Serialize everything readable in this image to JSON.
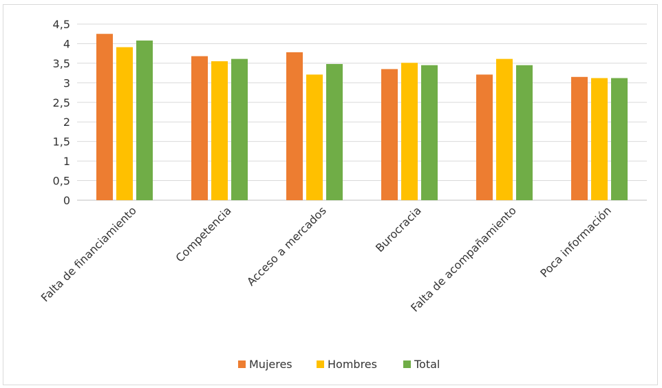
{
  "chart_data": {
    "type": "bar",
    "categories": [
      "Falta de financiamiento",
      "Competencia",
      "Acceso a mercados",
      "Burocracia",
      "Falta de acompañamiento",
      "Poca información"
    ],
    "series": [
      {
        "name": "Mujeres",
        "color": "#ED7D31",
        "values": [
          4.25,
          3.68,
          3.78,
          3.35,
          3.21,
          3.15
        ]
      },
      {
        "name": "Hombres",
        "color": "#FFC000",
        "values": [
          3.91,
          3.55,
          3.21,
          3.51,
          3.61,
          3.12
        ]
      },
      {
        "name": "Total",
        "color": "#70AD47",
        "values": [
          4.08,
          3.61,
          3.48,
          3.45,
          3.45,
          3.12
        ]
      }
    ],
    "yticks": [
      "0",
      "0,5",
      "1",
      "1,5",
      "2",
      "2,5",
      "3",
      "3,5",
      "4",
      "4,5"
    ],
    "ylim": [
      0,
      4.5
    ],
    "grid": true,
    "legend_position": "bottom"
  }
}
